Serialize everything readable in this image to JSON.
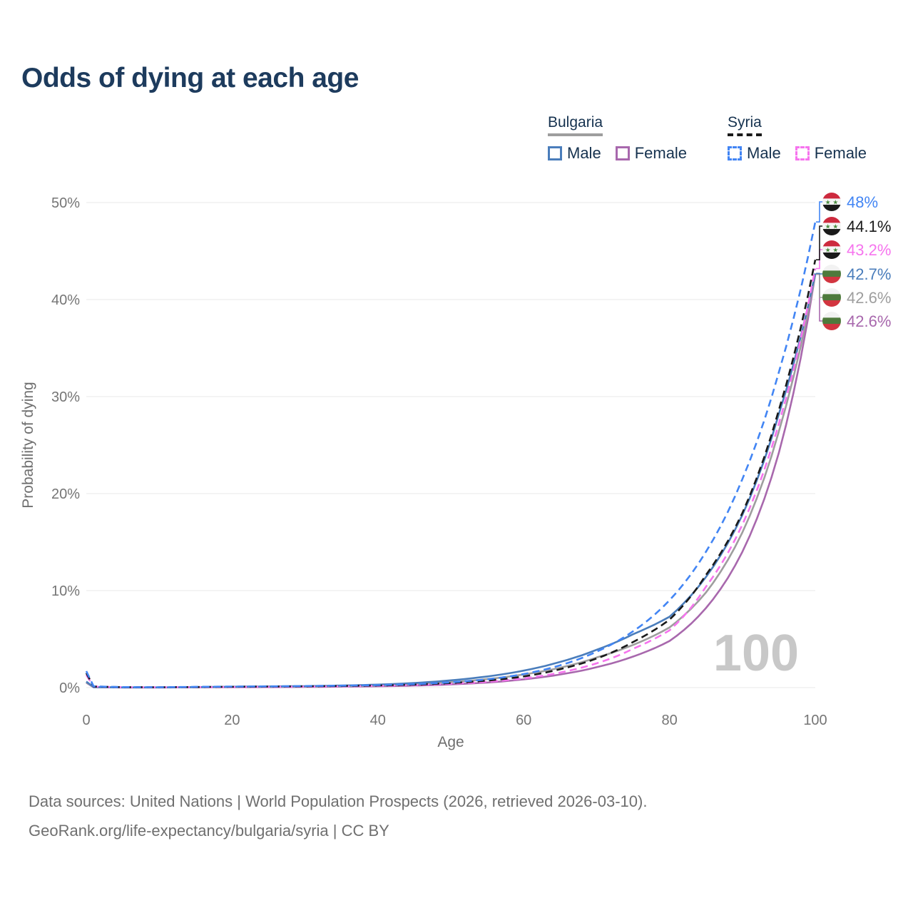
{
  "page": {
    "title": "Odds of dying at each age"
  },
  "legend": {
    "groups": [
      {
        "label": "Bulgaria",
        "underline_color": "#9e9e9e",
        "underline_style": "solid",
        "items": [
          {
            "label": "Male",
            "color": "#4a7dbb",
            "style": "solid"
          },
          {
            "label": "Female",
            "color": "#a868ad",
            "style": "solid"
          }
        ]
      },
      {
        "label": "Syria",
        "underline_color": "#1a1a1a",
        "underline_style": "dashed",
        "items": [
          {
            "label": "Male",
            "color": "#4285f4",
            "style": "dashed"
          },
          {
            "label": "Female",
            "color": "#f674ee",
            "style": "dashed"
          }
        ]
      }
    ]
  },
  "flags": {
    "syria": {
      "bands": [
        "#cd2a3e",
        "#f5f5f5",
        "#1a1a1a"
      ],
      "star_color": "#4a8c3f"
    },
    "bulgaria": {
      "bands": [
        "#f2f2f2",
        "#4e7a3c",
        "#d23540"
      ]
    }
  },
  "footer": {
    "line1": "Data sources: United Nations | World Population Prospects (2026, retrieved 2026-03-10).",
    "line2": "GeoRank.org/life-expectancy/bulgaria/syria | CC BY"
  },
  "chart_data": {
    "type": "line",
    "title": "Odds of dying at each age",
    "xlabel": "Age",
    "ylabel": "Probability of dying",
    "xlim": [
      0,
      100
    ],
    "ylim": [
      0,
      50
    ],
    "x_ticks": [
      0,
      20,
      40,
      60,
      80,
      100
    ],
    "y_ticks": [
      0,
      10,
      20,
      30,
      40,
      50
    ],
    "y_tick_suffix": "%",
    "grid": "horizontal",
    "gridline_color": "#e9e9e9",
    "axis_text_color": "#757575",
    "watermark": "100",
    "watermark_color": "#c8c8c8",
    "legend_position": "top-right",
    "ages": [
      0,
      1,
      5,
      10,
      15,
      20,
      25,
      30,
      35,
      40,
      45,
      50,
      55,
      60,
      65,
      70,
      75,
      80,
      85,
      90,
      95,
      100
    ],
    "series": [
      {
        "name": "Bulgaria Female",
        "country": "Bulgaria",
        "sex": "Female",
        "color": "#a868ad",
        "dash": false,
        "flag": "bulgaria",
        "end_label": "42.6%",
        "label_color": "#a868ad",
        "label_row": 5,
        "values": [
          0.5,
          0.04,
          0.015,
          0.015,
          0.03,
          0.04,
          0.05,
          0.07,
          0.1,
          0.14,
          0.21,
          0.33,
          0.52,
          0.85,
          1.35,
          2.1,
          3.2,
          4.8,
          8.2,
          14.0,
          24.2,
          42.6
        ]
      },
      {
        "name": "Bulgaria Both sexes",
        "country": "Bulgaria",
        "sex": "Both sexes",
        "color": "#9e9e9e",
        "dash": false,
        "flag": "bulgaria",
        "end_label": "42.6%",
        "label_color": "#9e9e9e",
        "label_row": 4,
        "values": [
          0.55,
          0.045,
          0.018,
          0.018,
          0.04,
          0.07,
          0.09,
          0.11,
          0.16,
          0.23,
          0.36,
          0.56,
          0.88,
          1.35,
          2.05,
          3.1,
          4.4,
          6.2,
          9.8,
          16.0,
          26.4,
          42.6
        ]
      },
      {
        "name": "Bulgaria Male",
        "country": "Bulgaria",
        "sex": "Male",
        "color": "#4a7dbb",
        "dash": false,
        "flag": "bulgaria",
        "end_label": "42.7%",
        "label_color": "#4a7dbb",
        "label_row": 3,
        "values": [
          0.62,
          0.05,
          0.02,
          0.02,
          0.05,
          0.09,
          0.12,
          0.15,
          0.21,
          0.31,
          0.48,
          0.75,
          1.15,
          1.75,
          2.65,
          3.9,
          5.5,
          7.3,
          11.4,
          17.8,
          28.2,
          42.7
        ]
      },
      {
        "name": "Syria Female",
        "country": "Syria",
        "sex": "Female",
        "color": "#f674ee",
        "dash": true,
        "flag": "syria",
        "end_label": "43.2%",
        "label_color": "#f674ee",
        "label_row": 2,
        "values": [
          1.3,
          0.11,
          0.04,
          0.03,
          0.05,
          0.06,
          0.08,
          0.1,
          0.13,
          0.18,
          0.26,
          0.4,
          0.6,
          0.95,
          1.55,
          2.5,
          4.0,
          5.9,
          10.4,
          16.8,
          27.2,
          43.2
        ]
      },
      {
        "name": "Syria Both sexes",
        "country": "Syria",
        "sex": "Both sexes",
        "color": "#1a1a1a",
        "dash": true,
        "flag": "syria",
        "end_label": "44.1%",
        "label_color": "#1a1a1a",
        "label_row": 1,
        "values": [
          1.5,
          0.12,
          0.045,
          0.035,
          0.06,
          0.09,
          0.11,
          0.13,
          0.17,
          0.22,
          0.31,
          0.47,
          0.72,
          1.15,
          1.9,
          3.0,
          4.7,
          7.0,
          11.6,
          18.0,
          28.6,
          44.1
        ]
      },
      {
        "name": "Syria Male",
        "country": "Syria",
        "sex": "Male",
        "color": "#4285f4",
        "dash": true,
        "flag": "syria",
        "end_label": "48%",
        "label_color": "#4285f4",
        "label_row": 0,
        "values": [
          1.7,
          0.14,
          0.05,
          0.04,
          0.08,
          0.11,
          0.13,
          0.16,
          0.2,
          0.26,
          0.36,
          0.55,
          0.85,
          1.4,
          2.3,
          3.7,
          5.8,
          9.0,
          14.0,
          21.5,
          32.5,
          48.0
        ]
      }
    ]
  }
}
